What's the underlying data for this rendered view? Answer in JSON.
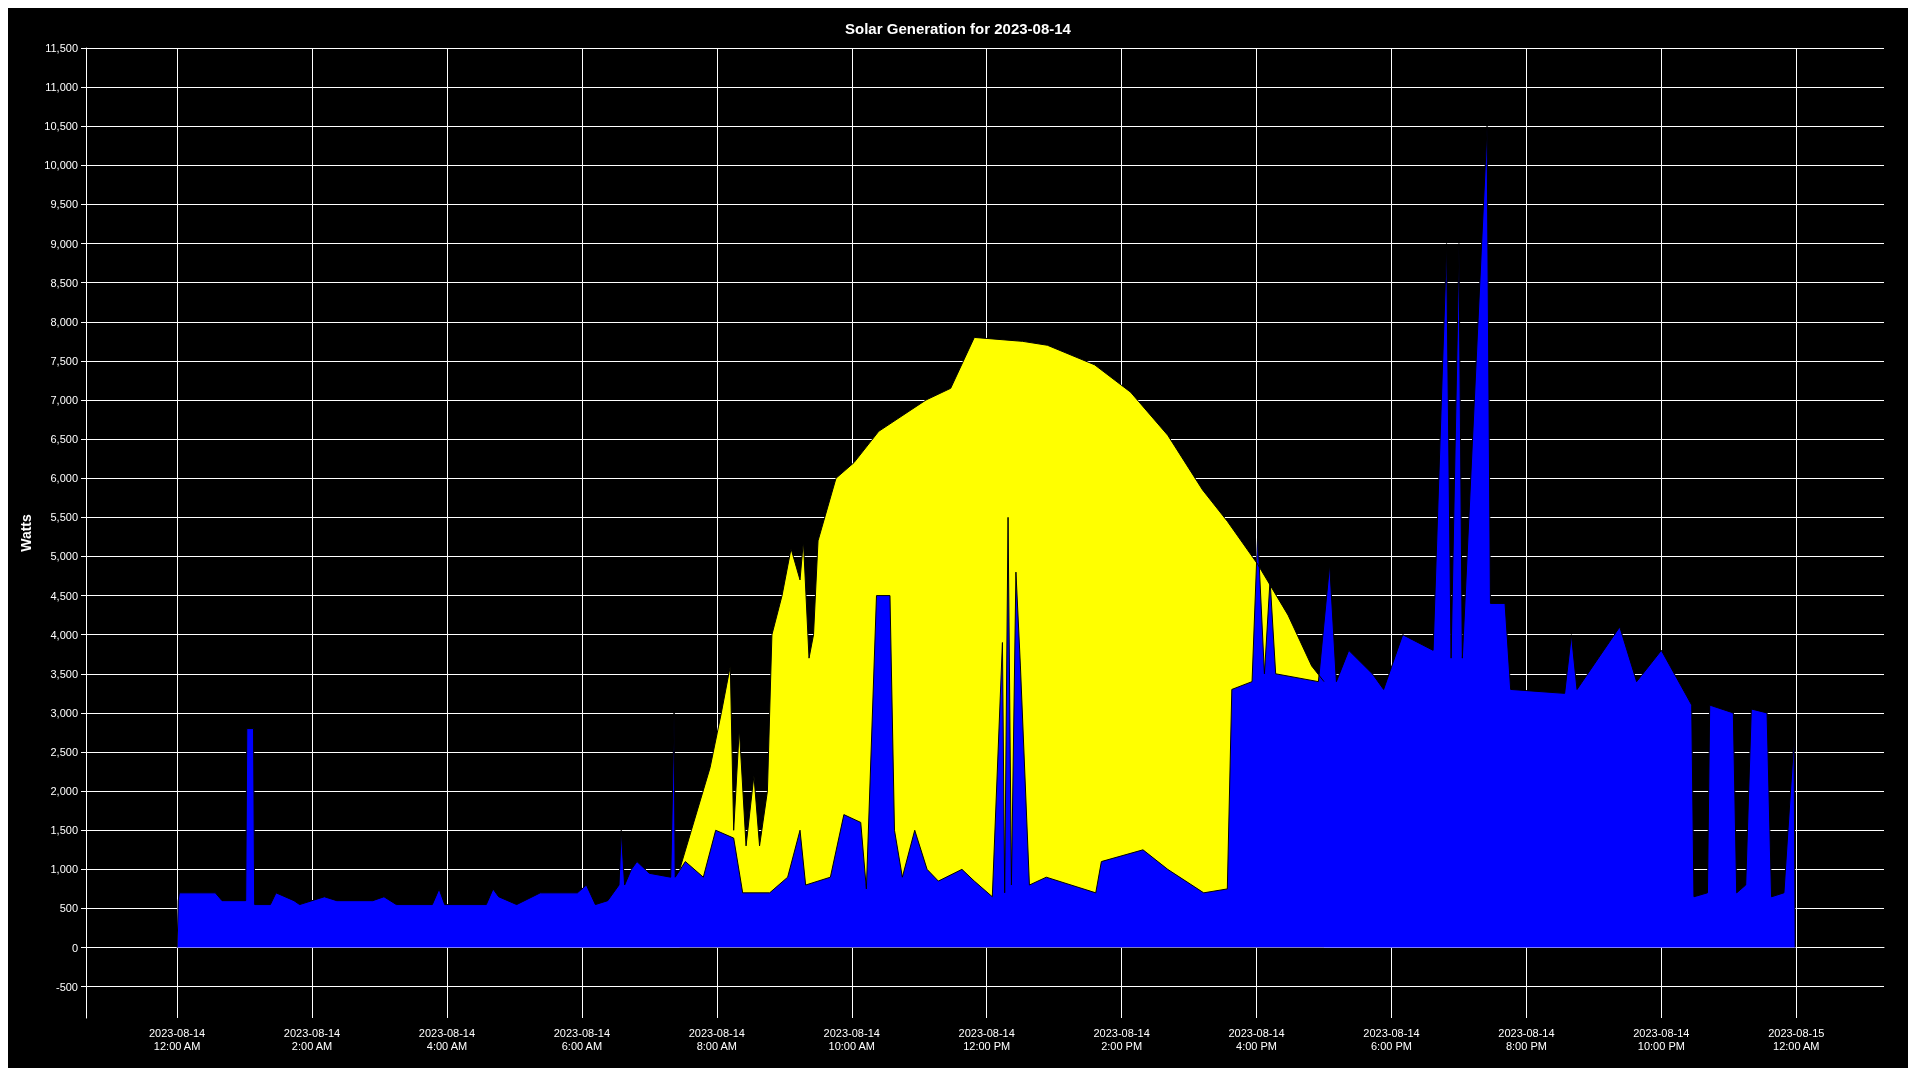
{
  "chart_data": {
    "type": "area",
    "title": "Solar Generation for 2023-08-14",
    "ylabel": "Watts",
    "grid": true,
    "xlim": [
      "2023-08-13T22:39",
      "2023-08-15T01:18"
    ],
    "ylim": [
      -900,
      11500
    ],
    "xticks": [
      {
        "value": "2023-08-14T00:00",
        "label": "2023-08-14\n12:00 AM"
      },
      {
        "value": "2023-08-14T02:00",
        "label": "2023-08-14\n2:00 AM"
      },
      {
        "value": "2023-08-14T04:00",
        "label": "2023-08-14\n4:00 AM"
      },
      {
        "value": "2023-08-14T06:00",
        "label": "2023-08-14\n6:00 AM"
      },
      {
        "value": "2023-08-14T08:00",
        "label": "2023-08-14\n8:00 AM"
      },
      {
        "value": "2023-08-14T10:00",
        "label": "2023-08-14\n10:00 AM"
      },
      {
        "value": "2023-08-14T12:00",
        "label": "2023-08-14\n12:00 PM"
      },
      {
        "value": "2023-08-14T14:00",
        "label": "2023-08-14\n2:00 PM"
      },
      {
        "value": "2023-08-14T16:00",
        "label": "2023-08-14\n4:00 PM"
      },
      {
        "value": "2023-08-14T18:00",
        "label": "2023-08-14\n6:00 PM"
      },
      {
        "value": "2023-08-14T20:00",
        "label": "2023-08-14\n8:00 PM"
      },
      {
        "value": "2023-08-14T22:00",
        "label": "2023-08-14\n10:00 PM"
      },
      {
        "value": "2023-08-15T00:00",
        "label": "2023-08-15\n12:00 AM"
      }
    ],
    "yticks": [
      -500,
      0,
      500,
      {
        "value": 1000,
        "label": "1,000"
      },
      {
        "value": 1500,
        "label": "1,500"
      },
      {
        "value": 2000,
        "label": "2,000"
      },
      {
        "value": 2500,
        "label": "2,500"
      },
      {
        "value": 3000,
        "label": "3,000"
      },
      {
        "value": 3500,
        "label": "3,500"
      },
      {
        "value": 4000,
        "label": "4,000"
      },
      {
        "value": 4500,
        "label": "4,500"
      },
      {
        "value": 5000,
        "label": "5,000"
      },
      {
        "value": 5500,
        "label": "5,500"
      },
      {
        "value": 6000,
        "label": "6,000"
      },
      {
        "value": 6500,
        "label": "6,500"
      },
      {
        "value": 7000,
        "label": "7,000"
      },
      {
        "value": 7500,
        "label": "7,500"
      },
      {
        "value": 8000,
        "label": "8,000"
      },
      {
        "value": 8500,
        "label": "8,500"
      },
      {
        "value": 9000,
        "label": "9,000"
      },
      {
        "value": 9500,
        "label": "9,500"
      },
      {
        "value": 10000,
        "label": "10,000"
      },
      {
        "value": 10500,
        "label": "10,500"
      },
      {
        "value": 11000,
        "label": "11,000"
      },
      {
        "value": 11500,
        "label": "11,500"
      }
    ],
    "series": [
      {
        "color": "#ffff00",
        "x": [
          "2023-08-14T07:27",
          "2023-08-14T07:54",
          "2023-08-14T08:04",
          "2023-08-14T08:12",
          "2023-08-14T08:15",
          "2023-08-14T08:20",
          "2023-08-14T08:26",
          "2023-08-14T08:33",
          "2023-08-14T08:38",
          "2023-08-14T08:45",
          "2023-08-14T08:49",
          "2023-08-14T08:58",
          "2023-08-14T09:06",
          "2023-08-14T09:14",
          "2023-08-14T09:17",
          "2023-08-14T09:22",
          "2023-08-14T09:26",
          "2023-08-14T09:30",
          "2023-08-14T09:46",
          "2023-08-14T10:02",
          "2023-08-14T10:24",
          "2023-08-14T11:06",
          "2023-08-14T11:28",
          "2023-08-14T11:49",
          "2023-08-14T12:32",
          "2023-08-14T12:54",
          "2023-08-14T13:36",
          "2023-08-14T14:08",
          "2023-08-14T14:41",
          "2023-08-14T15:12",
          "2023-08-14T15:34",
          "2023-08-14T16:01",
          "2023-08-14T16:28",
          "2023-08-14T16:49",
          "2023-08-14T17:00"
        ],
        "values": [
          1000,
          2300,
          3000,
          3600,
          1500,
          2800,
          1300,
          2200,
          1300,
          2000,
          4000,
          4500,
          5100,
          4700,
          5200,
          3700,
          4000,
          5200,
          6000,
          6200,
          6600,
          7000,
          7150,
          7800,
          7750,
          7700,
          7450,
          7100,
          6550,
          5850,
          5450,
          4900,
          4250,
          3600,
          3400
        ]
      },
      {
        "color": "#0000ff",
        "x": [
          "2023-08-14T00:00",
          "2023-08-14T00:01",
          "2023-08-14T00:02",
          "2023-08-14T00:34",
          "2023-08-14T00:40",
          "2023-08-14T01:01",
          "2023-08-14T01:02",
          "2023-08-14T01:08",
          "2023-08-14T01:09",
          "2023-08-14T01:23",
          "2023-08-14T01:28",
          "2023-08-14T01:44",
          "2023-08-14T01:49",
          "2023-08-14T02:11",
          "2023-08-14T02:22",
          "2023-08-14T02:54",
          "2023-08-14T03:04",
          "2023-08-14T03:15",
          "2023-08-14T03:47",
          "2023-08-14T03:53",
          "2023-08-14T03:58",
          "2023-08-14T04:35",
          "2023-08-14T04:41",
          "2023-08-14T04:46",
          "2023-08-14T05:02",
          "2023-08-14T05:23",
          "2023-08-14T05:56",
          "2023-08-14T06:04",
          "2023-08-14T06:12",
          "2023-08-14T06:23",
          "2023-08-14T06:33",
          "2023-08-14T06:35",
          "2023-08-14T06:38",
          "2023-08-14T06:44",
          "2023-08-14T06:49",
          "2023-08-14T07:00",
          "2023-08-14T07:19",
          "2023-08-14T07:22",
          "2023-08-14T07:23",
          "2023-08-14T07:32",
          "2023-08-14T07:48",
          "2023-08-14T07:59",
          "2023-08-14T08:15",
          "2023-08-14T08:23",
          "2023-08-14T08:47",
          "2023-08-14T09:03",
          "2023-08-14T09:14",
          "2023-08-14T09:19",
          "2023-08-14T09:41",
          "2023-08-14T09:53",
          "2023-08-14T10:08",
          "2023-08-14T10:13",
          "2023-08-14T10:22",
          "2023-08-14T10:34",
          "2023-08-14T10:38",
          "2023-08-14T10:45",
          "2023-08-14T10:56",
          "2023-08-14T11:07",
          "2023-08-14T11:17",
          "2023-08-14T11:38",
          "2023-08-14T11:49",
          "2023-08-14T12:05",
          "2023-08-14T12:14",
          "2023-08-14T12:16",
          "2023-08-14T12:19",
          "2023-08-14T12:22",
          "2023-08-14T12:26",
          "2023-08-14T12:30",
          "2023-08-14T12:38",
          "2023-08-14T12:53",
          "2023-08-14T13:15",
          "2023-08-14T13:37",
          "2023-08-14T13:42",
          "2023-08-14T14:19",
          "2023-08-14T14:41",
          "2023-08-14T15:13",
          "2023-08-14T15:34",
          "2023-08-14T15:38",
          "2023-08-14T15:56",
          "2023-08-14T16:01",
          "2023-08-14T16:07",
          "2023-08-14T16:12",
          "2023-08-14T16:17",
          "2023-08-14T16:55",
          "2023-08-14T17:05",
          "2023-08-14T17:11",
          "2023-08-14T17:22",
          "2023-08-14T17:43",
          "2023-08-14T17:53",
          "2023-08-14T18:10",
          "2023-08-14T18:37",
          "2023-08-14T18:49",
          "2023-08-14T18:53",
          "2023-08-14T19:00",
          "2023-08-14T19:03",
          "2023-08-14T19:25",
          "2023-08-14T19:28",
          "2023-08-14T19:41",
          "2023-08-14T19:46",
          "2023-08-14T20:34",
          "2023-08-14T20:40",
          "2023-08-14T20:45",
          "2023-08-14T21:23",
          "2023-08-14T21:38",
          "2023-08-14T22:00",
          "2023-08-14T22:27",
          "2023-08-14T22:29",
          "2023-08-14T22:41",
          "2023-08-14T22:43",
          "2023-08-14T23:04",
          "2023-08-14T23:07",
          "2023-08-14T23:15",
          "2023-08-14T23:20",
          "2023-08-14T23:34",
          "2023-08-14T23:38",
          "2023-08-14T23:49",
          "2023-08-14T23:58",
          "2023-08-14T23:59"
        ],
        "values": [
          0,
          600,
          700,
          700,
          600,
          600,
          2800,
          2800,
          550,
          550,
          700,
          600,
          550,
          650,
          600,
          600,
          650,
          550,
          550,
          750,
          550,
          550,
          750,
          650,
          550,
          700,
          700,
          800,
          550,
          600,
          800,
          1500,
          800,
          1000,
          1100,
          950,
          900,
          3000,
          900,
          1100,
          900,
          1500,
          1400,
          700,
          700,
          900,
          1500,
          800,
          900,
          1700,
          1600,
          750,
          4500,
          4500,
          1500,
          900,
          1500,
          1000,
          850,
          1000,
          850,
          650,
          3900,
          700,
          5500,
          800,
          4800,
          3600,
          800,
          900,
          800,
          700,
          1100,
          1250,
          1000,
          700,
          750,
          3300,
          3400,
          5300,
          3500,
          4700,
          3500,
          3400,
          4900,
          3400,
          3800,
          3500,
          3300,
          4000,
          3800,
          9000,
          3700,
          9000,
          3700,
          10500,
          4400,
          4400,
          3300,
          3250,
          4000,
          3300,
          4100,
          3400,
          3800,
          3100,
          650,
          700,
          3100,
          3000,
          700,
          800,
          3050,
          3000,
          650,
          700,
          2700,
          0
        ]
      }
    ]
  }
}
